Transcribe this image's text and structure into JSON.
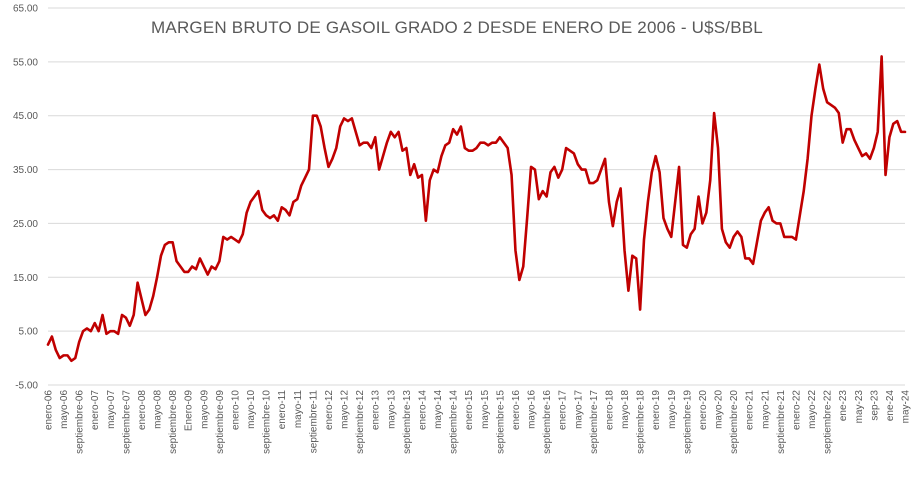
{
  "chart_data": {
    "type": "line",
    "title": "MARGEN BRUTO DE GASOIL GRADO 2 DESDE ENERO DE 2006 - U$S/BBL",
    "xlabel": "",
    "ylabel": "",
    "ylim": [
      -5,
      65
    ],
    "yticks": [
      "-5.00",
      "5.00",
      "15.00",
      "25.00",
      "35.00",
      "45.00",
      "55.00",
      "65.00"
    ],
    "grid": true,
    "line_color": "#c00000",
    "tick_labels": [
      "enero-06",
      "mayo-06",
      "septiembre-06",
      "enero-07",
      "mayo-07",
      "septiembre-07",
      "enero-08",
      "mayo-08",
      "septiembre-08",
      "Enero-09",
      "mayo-09",
      "septiembre-09",
      "enero-10",
      "mayo-10",
      "septiembre-10",
      "enero-11",
      "mayo-11",
      "septiembre-11",
      "enero-12",
      "mayo-12",
      "septiembre-12",
      "enero-13",
      "mayo-13",
      "septiembre-13",
      "enero-14",
      "mayo-14",
      "septiembre-14",
      "enero-15",
      "mayo-15",
      "septiembre-15",
      "enero-16",
      "mayo-16",
      "septiembre-16",
      "enero-17",
      "mayo-17",
      "septiembre-17",
      "enero-18",
      "mayo-18",
      "septiembre-18",
      "enero-19",
      "mayo-19",
      "septiembre-19",
      "enero-20",
      "mayo-20",
      "septiembre-20",
      "enero-21",
      "mayo-21",
      "septiembre-21",
      "enero-22",
      "mayo-22",
      "septiembre-22",
      "ene-23",
      "may-23",
      "sep-23",
      "ene-24",
      "may-24"
    ],
    "series": [
      {
        "values": [
          2.5,
          4,
          1.5,
          0,
          0.5,
          0.5,
          -0.5,
          0,
          3,
          5,
          5.5,
          5,
          6.5,
          5,
          8,
          4.5,
          5,
          5,
          4.5,
          8,
          7.5,
          6,
          8,
          14,
          11,
          8,
          9,
          11.5,
          15,
          19,
          21,
          21.5,
          21.5,
          18,
          17,
          16,
          16,
          17,
          16.5,
          18.5,
          17,
          15.5,
          17,
          16.5,
          18,
          22.5,
          22,
          22.5,
          22,
          21.5,
          23,
          27,
          29,
          30,
          31,
          27.5,
          26.5,
          26,
          26.5,
          25.5,
          28,
          27.5,
          26.5,
          29,
          29.5,
          32,
          33.5,
          35,
          45,
          45,
          43,
          39,
          35.5,
          37,
          39,
          43,
          44.5,
          44,
          44.5,
          42,
          39.5,
          40,
          40,
          39,
          41,
          35,
          37.5,
          40,
          42,
          41,
          42,
          38.5,
          39,
          34,
          36,
          33.5,
          34,
          25.5,
          33,
          35,
          34.5,
          37.5,
          39.5,
          40,
          42.5,
          41.5,
          43,
          39,
          38.5,
          38.5,
          39,
          40,
          40,
          39.5,
          40,
          40,
          41,
          40,
          39,
          34,
          20,
          14.5,
          17,
          26,
          35.5,
          35,
          29.5,
          31,
          30,
          34.5,
          35.5,
          33.5,
          35,
          39,
          38.5,
          38,
          36,
          35,
          35,
          32.5,
          32.5,
          33,
          35,
          37,
          29,
          24.5,
          29,
          31.5,
          20,
          12.5,
          19,
          18.5,
          9,
          22,
          29,
          34.5,
          37.5,
          34.5,
          26,
          24,
          22.5,
          29,
          35.5,
          21,
          20.5,
          23,
          24,
          30,
          25,
          27,
          33,
          45.5,
          39,
          24,
          21.5,
          20.5,
          22.5,
          23.5,
          22.5,
          18.5,
          18.5,
          17.5,
          21.5,
          25.5,
          27,
          28,
          25.5,
          25,
          25,
          22.5,
          22.5,
          22.5,
          22,
          26.5,
          31,
          37,
          45,
          50,
          54.5,
          50,
          47.5,
          47,
          46.5,
          45.5,
          40,
          42.5,
          42.5,
          40.5,
          39,
          37.5,
          38,
          37,
          39,
          42,
          56,
          34,
          41,
          43.5,
          44,
          42,
          42
        ]
      }
    ]
  }
}
